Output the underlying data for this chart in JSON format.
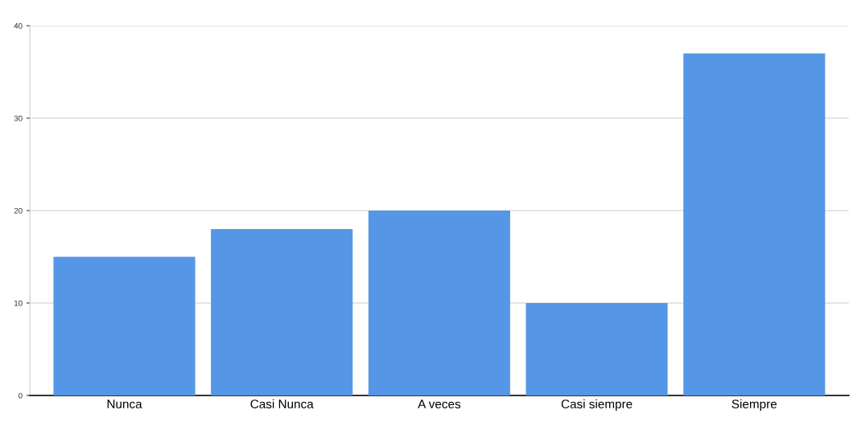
{
  "chart_data": {
    "type": "bar",
    "categories": [
      "Nunca",
      "Casi Nunca",
      "A veces",
      "Casi siempre",
      "Siempre"
    ],
    "values": [
      15,
      18,
      20,
      10,
      37
    ],
    "color": "#5596e6",
    "ylim": [
      0,
      40
    ],
    "yticks": [
      0,
      10,
      20,
      30,
      40
    ],
    "grid": "y"
  }
}
